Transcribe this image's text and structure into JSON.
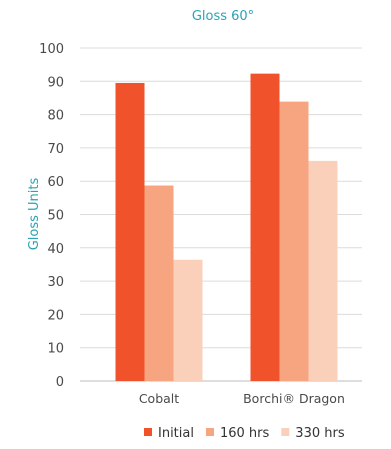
{
  "chart_data": {
    "type": "bar",
    "title": "Gloss 60°",
    "xlabel": "",
    "ylabel": "Gloss Units",
    "ylim": [
      0,
      100
    ],
    "yticks": [
      0,
      10,
      20,
      30,
      40,
      50,
      60,
      70,
      80,
      90,
      100
    ],
    "grid": true,
    "legend_position": "bottom",
    "categories": [
      "Cobalt",
      "Borchi® Dragon"
    ],
    "series": [
      {
        "name": "Initial",
        "color": "#f0522b",
        "values": [
          89.5,
          92.3
        ]
      },
      {
        "name": "160 hrs",
        "color": "#f7a580",
        "values": [
          58.7,
          83.9
        ]
      },
      {
        "name": "330 hrs",
        "color": "#fbd0bb",
        "values": [
          36.4,
          66.1
        ]
      }
    ]
  }
}
